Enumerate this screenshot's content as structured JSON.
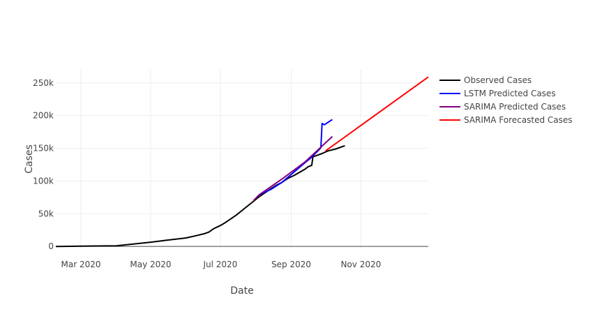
{
  "chart_data": {
    "type": "line",
    "title": "",
    "xlabel": "Date",
    "ylabel": "Cases",
    "x_type": "date",
    "xlim": [
      "2020-02-08",
      "2020-12-30"
    ],
    "ylim": [
      -3000,
      270000
    ],
    "x_ticks": [
      {
        "date": "2020-03-01",
        "label": "Mar 2020"
      },
      {
        "date": "2020-05-01",
        "label": "May 2020"
      },
      {
        "date": "2020-07-01",
        "label": "Jul 2020"
      },
      {
        "date": "2020-09-01",
        "label": "Sep 2020"
      },
      {
        "date": "2020-11-01",
        "label": "Nov 2020"
      }
    ],
    "y_ticks": [
      {
        "value": 0,
        "label": "0"
      },
      {
        "value": 50000,
        "label": "50k"
      },
      {
        "value": 100000,
        "label": "100k"
      },
      {
        "value": 150000,
        "label": "150k"
      },
      {
        "value": 200000,
        "label": "200k"
      },
      {
        "value": 250000,
        "label": "250k"
      }
    ],
    "grid": true,
    "legend_position": "top-right",
    "series": [
      {
        "name": "Observed Cases",
        "color": "#000000",
        "points": [
          [
            "2020-02-08",
            0
          ],
          [
            "2020-02-20",
            200
          ],
          [
            "2020-03-01",
            500
          ],
          [
            "2020-03-15",
            700
          ],
          [
            "2020-04-01",
            1000
          ],
          [
            "2020-04-15",
            3500
          ],
          [
            "2020-05-01",
            6500
          ],
          [
            "2020-05-15",
            9500
          ],
          [
            "2020-06-01",
            13000
          ],
          [
            "2020-06-10",
            16500
          ],
          [
            "2020-06-17",
            19500
          ],
          [
            "2020-06-21",
            22000
          ],
          [
            "2020-06-25",
            27000
          ],
          [
            "2020-07-01",
            32000
          ],
          [
            "2020-07-05",
            36000
          ],
          [
            "2020-07-10",
            42000
          ],
          [
            "2020-07-15",
            48000
          ],
          [
            "2020-07-20",
            55000
          ],
          [
            "2020-07-25",
            62000
          ],
          [
            "2020-07-30",
            69000
          ],
          [
            "2020-08-04",
            76000
          ],
          [
            "2020-08-09",
            82000
          ],
          [
            "2020-08-14",
            88000
          ],
          [
            "2020-08-19",
            93500
          ],
          [
            "2020-08-24",
            98000
          ],
          [
            "2020-08-29",
            104000
          ],
          [
            "2020-09-03",
            108000
          ],
          [
            "2020-09-08",
            113000
          ],
          [
            "2020-09-13",
            118000
          ],
          [
            "2020-09-16",
            122000
          ],
          [
            "2020-09-19",
            124000
          ],
          [
            "2020-09-20",
            137000
          ],
          [
            "2020-09-24",
            139500
          ],
          [
            "2020-09-28",
            142000
          ],
          [
            "2020-10-03",
            146000
          ],
          [
            "2020-10-10",
            149000
          ],
          [
            "2020-10-18",
            154000
          ]
        ]
      },
      {
        "name": "LSTM Predicted Cases",
        "color": "#0000ff",
        "points": [
          [
            "2020-08-04",
            79000
          ],
          [
            "2020-08-14",
            87000
          ],
          [
            "2020-08-24",
            98000
          ],
          [
            "2020-09-03",
            113000
          ],
          [
            "2020-09-13",
            128000
          ],
          [
            "2020-09-18",
            135000
          ],
          [
            "2020-09-25",
            147000
          ],
          [
            "2020-09-27",
            151000
          ],
          [
            "2020-09-28",
            188000
          ],
          [
            "2020-09-30",
            186000
          ],
          [
            "2020-10-07",
            194000
          ]
        ]
      },
      {
        "name": "SARIMA Predicted Cases",
        "color": "#800080",
        "points": [
          [
            "2020-07-30",
            70000
          ],
          [
            "2020-08-04",
            79000
          ],
          [
            "2020-08-24",
            103000
          ],
          [
            "2020-09-13",
            129000
          ],
          [
            "2020-10-07",
            168000
          ]
        ]
      },
      {
        "name": "SARIMA Forecasted Cases",
        "color": "#ff0000",
        "points": [
          [
            "2020-10-01",
            146000
          ],
          [
            "2020-12-30",
            259000
          ]
        ]
      }
    ]
  }
}
